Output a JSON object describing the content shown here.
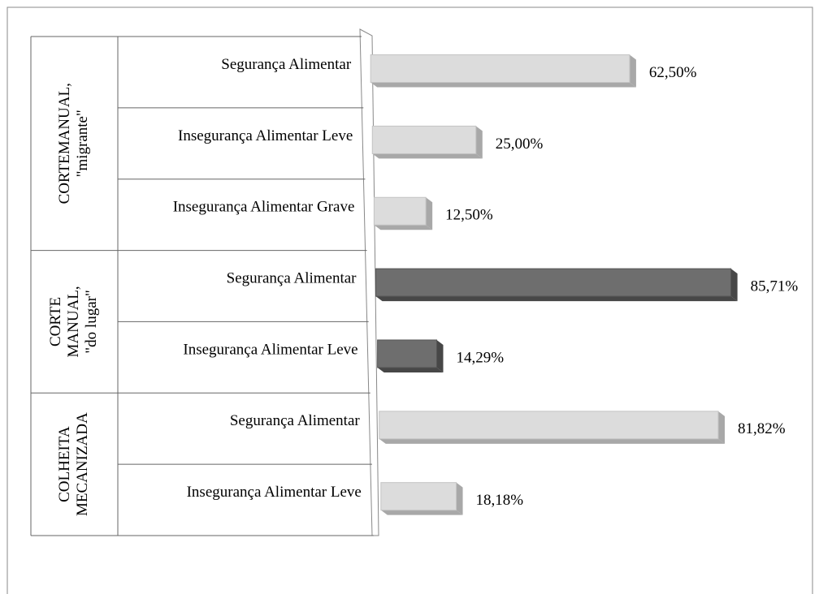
{
  "chart_data": {
    "type": "bar",
    "groups": [
      {
        "lines": [
          "CORTEMANUAL,",
          "\"migrante\""
        ],
        "size": 3
      },
      {
        "lines": [
          "CORTE",
          "MANUAL,",
          "\"do lugar\""
        ],
        "size": 2
      },
      {
        "lines": [
          "COLHEITA",
          "MECANIZADA"
        ],
        "size": 2
      }
    ],
    "categories": [
      "Segurança Alimentar",
      "Insegurança Alimentar  Leve",
      "Insegurança Alimentar  Grave",
      "Segurança Alimentar",
      "Insegurança Alimentar  Leve",
      "Segurança Alimentar",
      "Insegurança Alimentar  Leve"
    ],
    "values": [
      62.5,
      25,
      12.5,
      85.71,
      14.29,
      81.82,
      18.18
    ],
    "value_labels": [
      "62,50%",
      "25,00%",
      "12,50%",
      "85,71%",
      "14,29%",
      "81,82%",
      "18,18%"
    ],
    "colors": [
      "#dcdcdc",
      "#dcdcdc",
      "#dcdcdc",
      "#6e6e6e",
      "#6e6e6e",
      "#dcdcdc",
      "#dcdcdc"
    ]
  }
}
